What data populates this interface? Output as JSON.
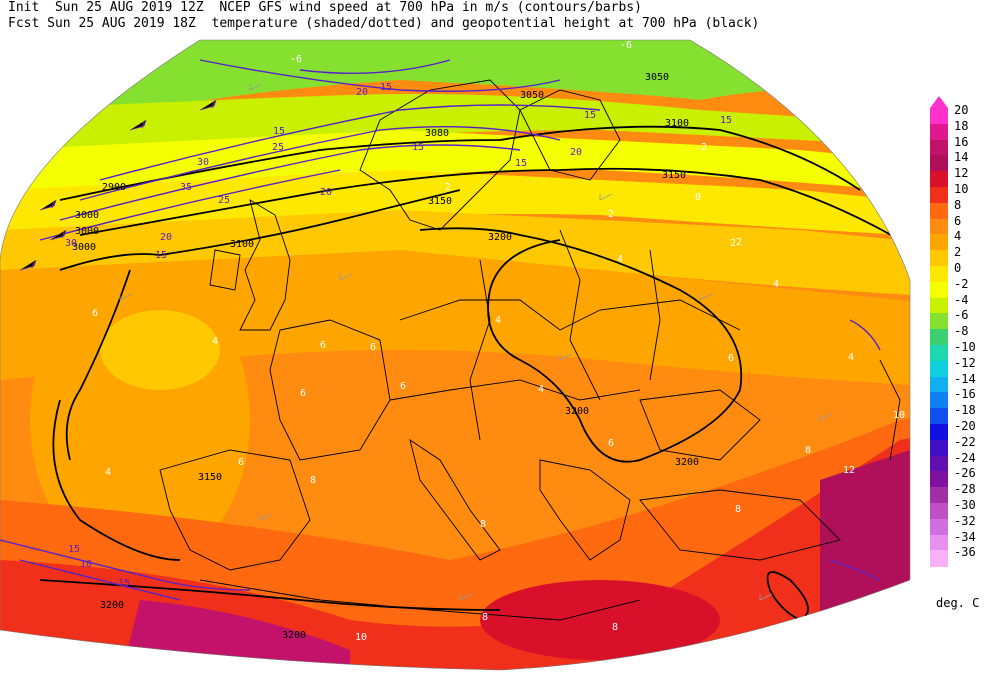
{
  "header": {
    "line1": "Init  Sun 25 AUG 2019 12Z  NCEP GFS wind speed at 700 hPa in m/s (contours/barbs)",
    "line2": "Fcst Sun 25 AUG 2019 18Z  temperature (shaded/dotted) and geopotential height at 700 hPa (black)"
  },
  "legend": {
    "unit": "deg. C",
    "levels": [
      {
        "label": "20",
        "color": "#ff33cc"
      },
      {
        "label": "18",
        "color": "#e0188f"
      },
      {
        "label": "16",
        "color": "#c2126a"
      },
      {
        "label": "14",
        "color": "#b0105a"
      },
      {
        "label": "12",
        "color": "#d8102a"
      },
      {
        "label": "10",
        "color": "#f0301a"
      },
      {
        "label": "8",
        "color": "#ff6a10"
      },
      {
        "label": "6",
        "color": "#ff8c10"
      },
      {
        "label": "4",
        "color": "#ffa500"
      },
      {
        "label": "2",
        "color": "#ffc800"
      },
      {
        "label": "0",
        "color": "#ffe800"
      },
      {
        "label": "-2",
        "color": "#f4ff00"
      },
      {
        "label": "-4",
        "color": "#c8f000"
      },
      {
        "label": "-6",
        "color": "#86e030"
      },
      {
        "label": "-8",
        "color": "#3cd070"
      },
      {
        "label": "-10",
        "color": "#20d8b0"
      },
      {
        "label": "-12",
        "color": "#10d0e0"
      },
      {
        "label": "-14",
        "color": "#10b0f0"
      },
      {
        "label": "-16",
        "color": "#1080f0"
      },
      {
        "label": "-18",
        "color": "#1050f0"
      },
      {
        "label": "-20",
        "color": "#1010e0"
      },
      {
        "label": "-22",
        "color": "#4010c8"
      },
      {
        "label": "-24",
        "color": "#6010b0"
      },
      {
        "label": "-26",
        "color": "#8010a0"
      },
      {
        "label": "-28",
        "color": "#a030a8"
      },
      {
        "label": "-30",
        "color": "#c050c8"
      },
      {
        "label": "-32",
        "color": "#d070e0"
      },
      {
        "label": "-34",
        "color": "#e890f0"
      },
      {
        "label": "-36",
        "color": "#f8b0f8"
      }
    ]
  },
  "height_labels": [
    {
      "text": "2900"
    },
    {
      "text": "3000"
    },
    {
      "text": "3000"
    },
    {
      "text": "3050"
    },
    {
      "text": "3050"
    },
    {
      "text": "3080"
    },
    {
      "text": "3100"
    },
    {
      "text": "3100"
    },
    {
      "text": "3150"
    },
    {
      "text": "3150"
    },
    {
      "text": "3150"
    },
    {
      "text": "3200"
    },
    {
      "text": "3200"
    },
    {
      "text": "3200"
    },
    {
      "text": "3200"
    },
    {
      "text": "3200"
    },
    {
      "text": "3000"
    }
  ],
  "wind_labels": [
    {
      "text": "20"
    },
    {
      "text": "15"
    },
    {
      "text": "15"
    },
    {
      "text": "25"
    },
    {
      "text": "30"
    },
    {
      "text": "35"
    },
    {
      "text": "25"
    },
    {
      "text": "20"
    },
    {
      "text": "15"
    },
    {
      "text": "15"
    },
    {
      "text": "20"
    },
    {
      "text": "15"
    },
    {
      "text": "15"
    },
    {
      "text": "10"
    },
    {
      "text": "15"
    },
    {
      "text": "30"
    },
    {
      "text": "20"
    },
    {
      "text": "15"
    },
    {
      "text": "15"
    }
  ],
  "temp_labels": [
    {
      "text": "-6"
    },
    {
      "text": "-6"
    },
    {
      "text": "-2"
    },
    {
      "text": "0"
    },
    {
      "text": "2"
    },
    {
      "text": "2"
    },
    {
      "text": "2"
    },
    {
      "text": "4"
    },
    {
      "text": "4"
    },
    {
      "text": "4"
    },
    {
      "text": "6"
    },
    {
      "text": "6"
    },
    {
      "text": "6"
    },
    {
      "text": "6"
    },
    {
      "text": "6"
    },
    {
      "text": "8"
    },
    {
      "text": "8"
    },
    {
      "text": "8"
    },
    {
      "text": "8"
    },
    {
      "text": "10"
    },
    {
      "text": "10"
    },
    {
      "text": "12"
    },
    {
      "text": "6"
    },
    {
      "text": "4"
    },
    {
      "text": "4"
    },
    {
      "text": "2"
    },
    {
      "text": "4"
    },
    {
      "text": "6"
    },
    {
      "text": "6"
    },
    {
      "text": "4"
    },
    {
      "text": "8"
    },
    {
      "text": "8"
    }
  ]
}
